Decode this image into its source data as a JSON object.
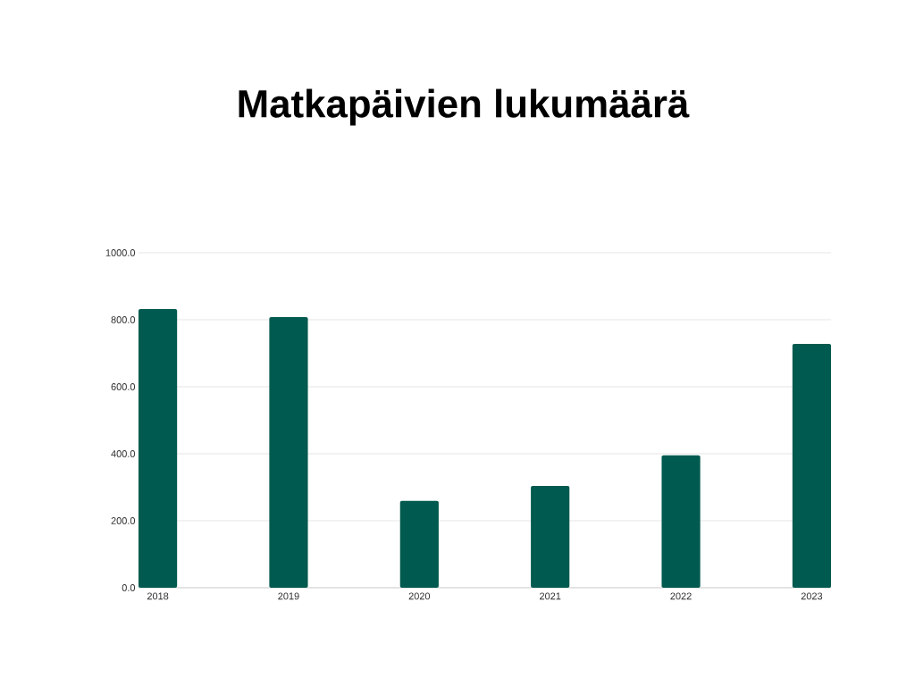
{
  "chart_data": {
    "type": "bar",
    "title": "Matkapäivien lukumäärä",
    "categories": [
      "2018",
      "2019",
      "2020",
      "2021",
      "2022",
      "2023"
    ],
    "values": [
      832,
      808,
      259,
      304,
      395,
      728
    ],
    "color": "#005a4f",
    "ylim": [
      0,
      1000
    ],
    "yticks": [
      {
        "value": 0,
        "label": "0.0"
      },
      {
        "value": 200,
        "label": "200.0"
      },
      {
        "value": 400,
        "label": "400.0"
      },
      {
        "value": 600,
        "label": "600.0"
      },
      {
        "value": 800,
        "label": "800.0"
      },
      {
        "value": 1000,
        "label": "1000.0"
      }
    ],
    "grid": "y"
  }
}
